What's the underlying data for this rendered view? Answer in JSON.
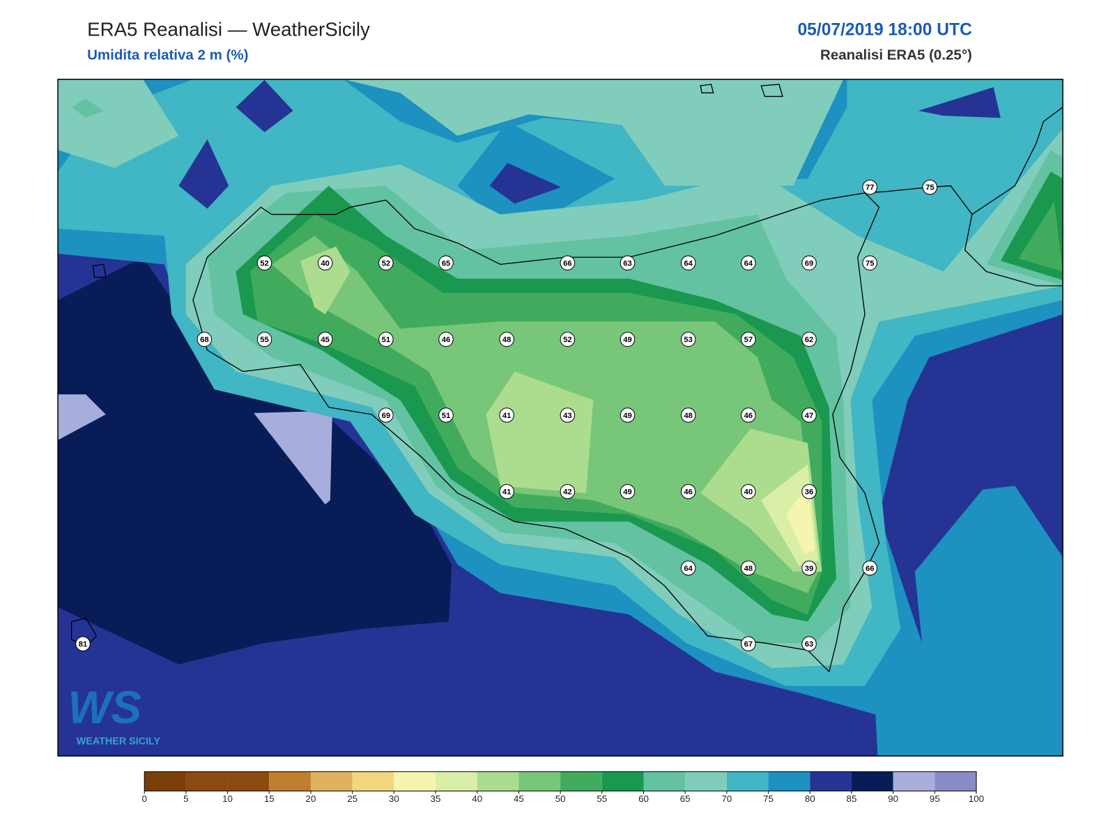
{
  "header": {
    "title": "ERA5 Reanalisi — WeatherSicily",
    "subtitle": "Umidita relativa 2 m (%)",
    "datetime": "05/07/2019 18:00 UTC",
    "source": "Reanalisi ERA5 (0.25°)"
  },
  "stations": [
    77,
    75,
    52,
    40,
    52,
    65,
    66,
    63,
    64,
    64,
    69,
    75,
    68,
    55,
    45,
    51,
    46,
    48,
    52,
    49,
    53,
    57,
    62,
    69,
    51,
    41,
    43,
    49,
    48,
    46,
    47,
    41,
    42,
    49,
    46,
    40,
    36,
    64,
    48,
    39,
    66,
    81,
    67,
    63
  ],
  "colorbar": {
    "ticks": [
      0,
      5,
      10,
      15,
      20,
      25,
      30,
      35,
      40,
      45,
      50,
      55,
      60,
      65,
      70,
      75,
      80,
      85,
      90,
      95,
      100
    ],
    "colors": [
      "#7a3e08",
      "#8c4a10",
      "#8c4a10",
      "#bf7f2f",
      "#dfb25f",
      "#f1d67e",
      "#f6f5b0",
      "#d9efa8",
      "#acdd8e",
      "#78c679",
      "#41ab5d",
      "#1a9850",
      "#63c2a2",
      "#80cdbb",
      "#41b6c4",
      "#1d91c0",
      "#253494",
      "#081d58",
      "#a7aedb",
      "#8b8bc6"
    ]
  },
  "logo": {
    "mark": "WS",
    "text": "WEATHER SICILY"
  }
}
